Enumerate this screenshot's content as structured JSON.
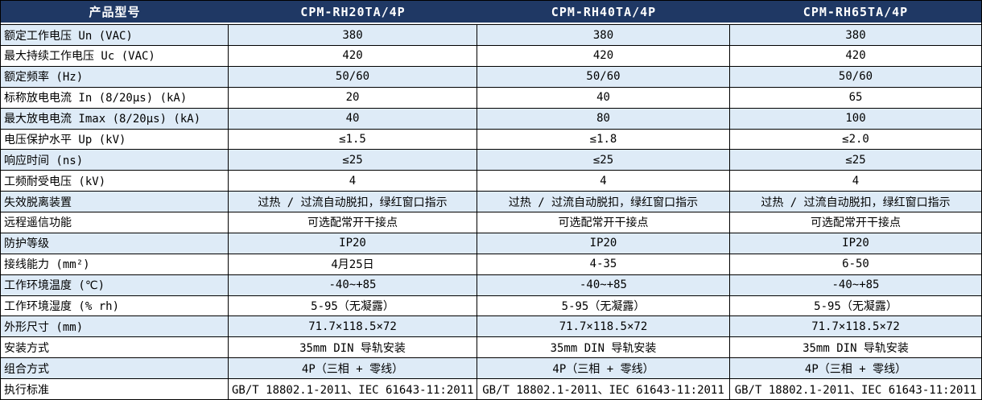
{
  "table": {
    "colors": {
      "header_bg": "#1f3864",
      "header_text": "#ffffff",
      "stripe_bg": "#deebf7",
      "row_bg": "#ffffff",
      "border": "#000000"
    },
    "header": {
      "label": "产品型号",
      "columns": [
        "CPM-RH20TA/4P",
        "CPM-RH40TA/4P",
        "CPM-RH65TA/4P"
      ]
    },
    "rows": [
      {
        "label": "额定工作电压 Un (VAC)",
        "values": [
          "380",
          "380",
          "380"
        ]
      },
      {
        "label": "最大持续工作电压 Uc (VAC)",
        "values": [
          "420",
          "420",
          "420"
        ]
      },
      {
        "label": "额定频率 (Hz)",
        "values": [
          "50/60",
          "50/60",
          "50/60"
        ]
      },
      {
        "label": "标称放电电流 In (8/20μs) (kA)",
        "values": [
          "20",
          "40",
          "65"
        ]
      },
      {
        "label": "最大放电电流 Imax (8/20μs) (kA)",
        "values": [
          "40",
          "80",
          "100"
        ]
      },
      {
        "label": "电压保护水平 Up (kV)",
        "values": [
          "≤1.5",
          "≤1.8",
          "≤2.0"
        ]
      },
      {
        "label": "响应时间 (ns)",
        "values": [
          "≤25",
          "≤25",
          "≤25"
        ]
      },
      {
        "label": "工频耐受电压 (kV)",
        "values": [
          "4",
          "4",
          "4"
        ]
      },
      {
        "label": "失效脱离装置",
        "values": [
          "过热 / 过流自动脱扣，绿红窗口指示",
          "过热 / 过流自动脱扣，绿红窗口指示",
          "过热 / 过流自动脱扣，绿红窗口指示"
        ]
      },
      {
        "label": "远程遥信功能",
        "values": [
          "可选配常开干接点",
          "可选配常开干接点",
          "可选配常开干接点"
        ]
      },
      {
        "label": "防护等级",
        "values": [
          "IP20",
          "IP20",
          "IP20"
        ]
      },
      {
        "label": "接线能力 (mm²)",
        "values": [
          "4月25日",
          "4-35",
          "6-50"
        ]
      },
      {
        "label": "工作环境温度 (℃)",
        "values": [
          "-40~+85",
          "-40~+85",
          "-40~+85"
        ]
      },
      {
        "label": "工作环境湿度 (% rh)",
        "values": [
          "5-95（无凝露）",
          "5-95（无凝露）",
          "5-95（无凝露）"
        ]
      },
      {
        "label": "外形尺寸 (mm)",
        "values": [
          "71.7×118.5×72",
          "71.7×118.5×72",
          "71.7×118.5×72"
        ]
      },
      {
        "label": "安装方式",
        "values": [
          "35mm DIN 导轨安装",
          "35mm DIN 导轨安装",
          "35mm DIN 导轨安装"
        ]
      },
      {
        "label": "组合方式",
        "values": [
          "4P（三相 + 零线）",
          "4P（三相 + 零线）",
          "4P（三相 + 零线）"
        ]
      },
      {
        "label": "执行标准",
        "values": [
          "GB/T 18802.1-2011、IEC 61643-11:2011",
          "GB/T 18802.1-2011、IEC 61643-11:2011",
          "GB/T 18802.1-2011、IEC 61643-11:2011"
        ]
      }
    ]
  }
}
